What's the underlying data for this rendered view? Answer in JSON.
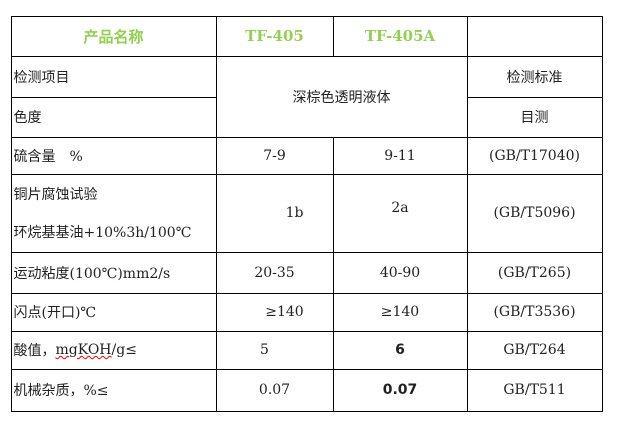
{
  "header": {
    "product_name": "产品名称",
    "p1": "TF-405",
    "p2": "TF-405A",
    "std": ""
  },
  "rows": {
    "item_label": "检测项目",
    "std_label": "检测标准",
    "appearance": "深棕色透明液体",
    "color_label": "色度",
    "color_std": "目测",
    "sulfur": {
      "label": "硫含量　%",
      "v1": "7-9",
      "v2": "9-11",
      "std": "(GB/T17040)"
    },
    "copper": {
      "label1": "铜片腐蚀试验",
      "label2": "环烷基基油+10%3h/100℃",
      "v1": "1b",
      "v2": "2a",
      "std": "(GB/T5096)"
    },
    "viscosity": {
      "label": "运动粘度(100℃)mm2/s",
      "v1": "20-35",
      "v2": "40-90",
      "std": "(GB/T265)"
    },
    "flash": {
      "label": "闪点(开口)℃",
      "v1": "≥140",
      "v2": "≥140",
      "std": "(GB/T3536)"
    },
    "acid": {
      "label_a": "酸值，",
      "label_b": "mgKOH",
      "label_c": "/g≤",
      "v1": "5",
      "v2": "6",
      "std": "GB/T264"
    },
    "impurity": {
      "label": "机械杂质，%≤",
      "v1": "0.07",
      "v2": "0.07",
      "std": "GB/T511"
    }
  }
}
